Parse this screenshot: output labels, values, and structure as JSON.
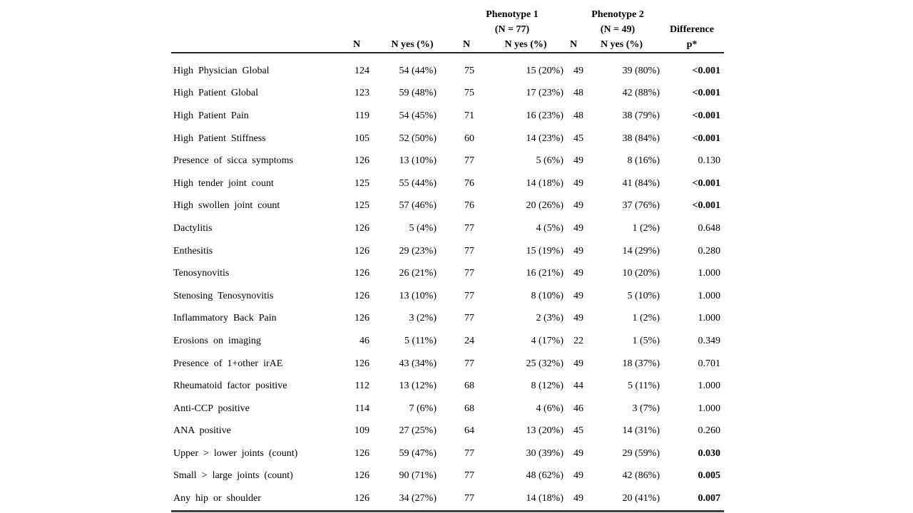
{
  "colors": {
    "page_background": "#ffffff",
    "text": "#000000",
    "header_rule": "#262626",
    "bottom_rule": "#3f3f3f"
  },
  "table": {
    "group_headers": {
      "phenotype1_line1": "Phenotype 1",
      "phenotype1_line2": "(N = 77)",
      "phenotype2_line1": "Phenotype 2",
      "phenotype2_line2": "(N = 49)",
      "difference_line1": "Difference",
      "difference_line2": "p*"
    },
    "col_headers": {
      "n": "N",
      "n_yes": "N yes (%)"
    },
    "rows": [
      {
        "label": "High Physician Global",
        "n": "124",
        "n_yes": "54 (44%)",
        "p1_n": "75",
        "p1_yes": "15 (20%)",
        "p2_n": "49",
        "p2_yes": "39 (80%)",
        "p": "<0.001",
        "p_bold": true
      },
      {
        "label": "High Patient Global",
        "n": "123",
        "n_yes": "59 (48%)",
        "p1_n": "75",
        "p1_yes": "17 (23%)",
        "p2_n": "48",
        "p2_yes": "42 (88%)",
        "p": "<0.001",
        "p_bold": true
      },
      {
        "label": "High Patient Pain",
        "n": "119",
        "n_yes": "54 (45%)",
        "p1_n": "71",
        "p1_yes": "16 (23%)",
        "p2_n": "48",
        "p2_yes": "38 (79%)",
        "p": "<0.001",
        "p_bold": true
      },
      {
        "label": "High Patient Stiffness",
        "n": "105",
        "n_yes": "52 (50%)",
        "p1_n": "60",
        "p1_yes": "14 (23%)",
        "p2_n": "45",
        "p2_yes": "38 (84%)",
        "p": "<0.001",
        "p_bold": true
      },
      {
        "label": "Presence of sicca symptoms",
        "n": "126",
        "n_yes": "13 (10%)",
        "p1_n": "77",
        "p1_yes": "5 (6%)",
        "p2_n": "49",
        "p2_yes": "8 (16%)",
        "p": "0.130",
        "p_bold": false
      },
      {
        "label": "High tender joint count",
        "n": "125",
        "n_yes": "55 (44%)",
        "p1_n": "76",
        "p1_yes": "14 (18%)",
        "p2_n": "49",
        "p2_yes": "41 (84%)",
        "p": "<0.001",
        "p_bold": true
      },
      {
        "label": "High swollen joint count",
        "n": "125",
        "n_yes": "57 (46%)",
        "p1_n": "76",
        "p1_yes": "20 (26%)",
        "p2_n": "49",
        "p2_yes": "37 (76%)",
        "p": "<0.001",
        "p_bold": true
      },
      {
        "label": "Dactylitis",
        "n": "126",
        "n_yes": "5 (4%)",
        "p1_n": "77",
        "p1_yes": "4 (5%)",
        "p2_n": "49",
        "p2_yes": "1 (2%)",
        "p": "0.648",
        "p_bold": false
      },
      {
        "label": "Enthesitis",
        "n": "126",
        "n_yes": "29 (23%)",
        "p1_n": "77",
        "p1_yes": "15 (19%)",
        "p2_n": "49",
        "p2_yes": "14 (29%)",
        "p": "0.280",
        "p_bold": false
      },
      {
        "label": "Tenosynovitis",
        "n": "126",
        "n_yes": "26 (21%)",
        "p1_n": "77",
        "p1_yes": "16 (21%)",
        "p2_n": "49",
        "p2_yes": "10 (20%)",
        "p": "1.000",
        "p_bold": false
      },
      {
        "label": "Stenosing Tenosynovitis",
        "n": "126",
        "n_yes": "13 (10%)",
        "p1_n": "77",
        "p1_yes": "8 (10%)",
        "p2_n": "49",
        "p2_yes": "5 (10%)",
        "p": "1.000",
        "p_bold": false
      },
      {
        "label": "Inflammatory Back Pain",
        "n": "126",
        "n_yes": "3 (2%)",
        "p1_n": "77",
        "p1_yes": "2 (3%)",
        "p2_n": "49",
        "p2_yes": "1 (2%)",
        "p": "1.000",
        "p_bold": false
      },
      {
        "label": "Erosions on imaging",
        "n": "46",
        "n_yes": "5 (11%)",
        "p1_n": "24",
        "p1_yes": "4 (17%)",
        "p2_n": "22",
        "p2_yes": "1 (5%)",
        "p": "0.349",
        "p_bold": false
      },
      {
        "label": "Presence of 1+other irAE",
        "n": "126",
        "n_yes": "43 (34%)",
        "p1_n": "77",
        "p1_yes": "25 (32%)",
        "p2_n": "49",
        "p2_yes": "18 (37%)",
        "p": "0.701",
        "p_bold": false
      },
      {
        "label": "Rheumatoid factor positive",
        "n": "112",
        "n_yes": "13 (12%)",
        "p1_n": "68",
        "p1_yes": "8 (12%)",
        "p2_n": "44",
        "p2_yes": "5 (11%)",
        "p": "1.000",
        "p_bold": false
      },
      {
        "label": "Anti-CCP positive",
        "n": "114",
        "n_yes": "7 (6%)",
        "p1_n": "68",
        "p1_yes": "4 (6%)",
        "p2_n": "46",
        "p2_yes": "3 (7%)",
        "p": "1.000",
        "p_bold": false
      },
      {
        "label": "ANA positive",
        "n": "109",
        "n_yes": "27 (25%)",
        "p1_n": "64",
        "p1_yes": "13 (20%)",
        "p2_n": "45",
        "p2_yes": "14 (31%)",
        "p": "0.260",
        "p_bold": false
      },
      {
        "label": "Upper > lower joints (count)",
        "n": "126",
        "n_yes": "59 (47%)",
        "p1_n": "77",
        "p1_yes": "30 (39%)",
        "p2_n": "49",
        "p2_yes": "29 (59%)",
        "p": "0.030",
        "p_bold": true
      },
      {
        "label": "Small > large joints (count)",
        "n": "126",
        "n_yes": "90 (71%)",
        "p1_n": "77",
        "p1_yes": "48 (62%)",
        "p2_n": "49",
        "p2_yes": "42 (86%)",
        "p": "0.005",
        "p_bold": true
      },
      {
        "label": "Any hip or shoulder",
        "n": "126",
        "n_yes": "34 (27%)",
        "p1_n": "77",
        "p1_yes": "14 (18%)",
        "p2_n": "49",
        "p2_yes": "20 (41%)",
        "p": "0.007",
        "p_bold": true
      }
    ]
  }
}
